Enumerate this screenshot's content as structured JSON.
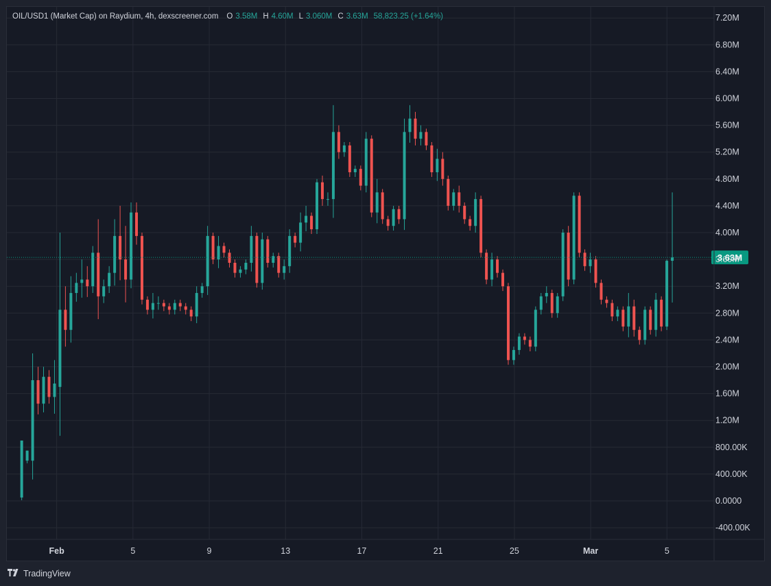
{
  "legend": {
    "symbol": "OIL/USD1 (Market Cap) on Raydium, 4h, dexscreener.com",
    "open_label": "O",
    "open": "3.58M",
    "high_label": "H",
    "high": "4.60M",
    "low_label": "L",
    "low": "3.060M",
    "close_label": "C",
    "close": "3.63M",
    "change": "58,823.25 (+1.64%)"
  },
  "footer": {
    "brand": "TradingView"
  },
  "colors": {
    "up": "#26a69a",
    "down": "#ef5350",
    "text": "#d1d4dc",
    "grid": "#262a35",
    "bg": "#161a25",
    "price_tag": "#089981"
  },
  "chart_data": {
    "type": "candlestick",
    "ylim": [
      -500000,
      7400000
    ],
    "y_ticks": [
      7200000,
      6800000,
      6400000,
      6000000,
      5600000,
      5200000,
      4800000,
      4400000,
      4000000,
      3600000,
      3200000,
      2800000,
      2400000,
      2000000,
      1600000,
      1200000,
      800000,
      400000,
      0,
      -400000
    ],
    "y_tick_labels": [
      "7.20M",
      "6.80M",
      "6.40M",
      "6.00M",
      "5.60M",
      "5.20M",
      "4.80M",
      "4.40M",
      "4.00M",
      "3.60M",
      "3.20M",
      "2.80M",
      "2.40M",
      "2.00M",
      "1.60M",
      "1.20M",
      "800.00K",
      "400.00K",
      "0.0000",
      "-400.00K"
    ],
    "x_ticks": [
      {
        "x": "2025-02-01",
        "label": "Feb",
        "bold": true
      },
      {
        "x": "2025-02-05",
        "label": "5"
      },
      {
        "x": "2025-02-09",
        "label": "9"
      },
      {
        "x": "2025-02-13",
        "label": "13"
      },
      {
        "x": "2025-02-17",
        "label": "17"
      },
      {
        "x": "2025-02-21",
        "label": "21"
      },
      {
        "x": "2025-02-25",
        "label": "25"
      },
      {
        "x": "2025-03-01",
        "label": "Mar",
        "bold": true
      },
      {
        "x": "2025-03-05",
        "label": "5"
      }
    ],
    "xlim": [
      "2025-01-30T00:00",
      "2025-03-06T12:00"
    ],
    "current_price": 3630000,
    "current_price_label": "3.63M",
    "grid": true,
    "ohlc_path": [
      [
        0.05,
        0.9,
        0.5
      ],
      [
        0.6,
        0.75,
        0.3
      ],
      [
        0.6,
        1.8,
        2.2
      ],
      [
        1.8,
        1.45,
        2.0
      ],
      [
        1.45,
        1.85,
        2.0
      ],
      [
        1.85,
        1.55,
        1.95
      ],
      [
        1.55,
        1.75,
        2.1
      ],
      [
        1.7,
        2.85,
        4.0
      ],
      [
        2.85,
        2.55,
        3.2
      ],
      [
        2.55,
        3.1,
        3.35
      ],
      [
        3.1,
        3.25,
        3.4
      ],
      [
        3.25,
        3.3,
        3.6
      ],
      [
        3.3,
        3.2,
        3.5
      ],
      [
        3.2,
        3.7,
        3.8
      ],
      [
        3.7,
        3.05,
        4.2
      ],
      [
        3.05,
        3.2,
        3.3
      ],
      [
        3.2,
        3.4,
        3.5
      ],
      [
        3.4,
        3.95,
        4.2
      ],
      [
        3.95,
        3.6,
        4.4
      ],
      [
        3.6,
        3.3,
        4.1
      ],
      [
        3.3,
        4.3,
        4.45
      ],
      [
        4.3,
        3.95,
        4.45
      ],
      [
        3.95,
        3.0,
        4.0
      ],
      [
        3.0,
        2.85,
        3.05
      ],
      [
        2.85,
        2.95,
        3.1
      ],
      [
        2.95,
        2.95,
        3.05
      ],
      [
        2.95,
        2.9,
        3.0
      ],
      [
        2.9,
        2.85,
        2.95
      ],
      [
        2.85,
        2.95,
        3.0
      ],
      [
        2.95,
        2.9,
        3.0
      ],
      [
        2.9,
        2.85,
        2.95
      ],
      [
        2.85,
        2.75,
        2.9
      ],
      [
        2.75,
        3.1,
        3.2
      ],
      [
        3.1,
        3.2,
        3.25
      ],
      [
        3.2,
        3.95,
        4.1
      ],
      [
        3.95,
        3.6,
        4.0
      ],
      [
        3.6,
        3.8,
        3.95
      ],
      [
        3.8,
        3.7,
        3.85
      ],
      [
        3.7,
        3.55,
        3.75
      ],
      [
        3.55,
        3.4,
        3.6
      ],
      [
        3.4,
        3.45,
        3.5
      ],
      [
        3.45,
        3.55,
        3.6
      ],
      [
        3.55,
        3.95,
        4.1
      ],
      [
        3.95,
        3.25,
        4.0
      ],
      [
        3.25,
        3.9,
        4.0
      ],
      [
        3.9,
        3.55,
        3.95
      ],
      [
        3.55,
        3.65,
        3.7
      ],
      [
        3.65,
        3.4,
        3.7
      ],
      [
        3.4,
        3.5,
        3.6
      ],
      [
        3.5,
        3.95,
        4.05
      ],
      [
        3.95,
        3.85,
        4.0
      ],
      [
        3.85,
        4.15,
        4.3
      ],
      [
        4.15,
        4.25,
        4.4
      ],
      [
        4.25,
        4.05,
        4.3
      ],
      [
        4.05,
        4.75,
        4.8
      ],
      [
        4.75,
        4.5,
        4.85
      ],
      [
        4.5,
        4.5,
        4.6
      ],
      [
        4.5,
        5.5,
        5.9
      ],
      [
        5.5,
        5.2,
        5.6
      ],
      [
        5.2,
        5.3,
        5.35
      ],
      [
        5.3,
        4.9,
        5.35
      ],
      [
        4.9,
        4.95,
        5.0
      ],
      [
        4.95,
        4.7,
        5.0
      ],
      [
        4.7,
        5.4,
        5.5
      ],
      [
        5.4,
        4.3,
        5.45
      ],
      [
        4.3,
        4.6,
        4.8
      ],
      [
        4.6,
        4.2,
        4.65
      ],
      [
        4.2,
        4.1,
        4.25
      ],
      [
        4.1,
        4.35,
        4.4
      ],
      [
        4.35,
        4.2,
        4.4
      ],
      [
        4.2,
        5.5,
        5.7
      ],
      [
        5.5,
        5.7,
        5.9
      ],
      [
        5.7,
        5.4,
        5.8
      ],
      [
        5.4,
        5.5,
        5.6
      ],
      [
        5.5,
        5.3,
        5.55
      ],
      [
        5.3,
        4.9,
        5.35
      ],
      [
        4.9,
        5.1,
        5.25
      ],
      [
        5.1,
        4.8,
        5.2
      ],
      [
        4.8,
        4.4,
        4.85
      ],
      [
        4.4,
        4.6,
        4.65
      ],
      [
        4.6,
        4.4,
        4.7
      ],
      [
        4.4,
        4.2,
        4.45
      ],
      [
        4.2,
        4.1,
        4.25
      ],
      [
        4.1,
        4.5,
        4.6
      ],
      [
        4.5,
        3.7,
        4.55
      ],
      [
        3.7,
        3.3,
        3.75
      ],
      [
        3.3,
        3.6,
        3.7
      ],
      [
        3.6,
        3.4,
        3.65
      ],
      [
        3.4,
        3.2,
        3.45
      ],
      [
        3.2,
        2.1,
        3.25
      ],
      [
        2.1,
        2.25,
        2.3
      ],
      [
        2.25,
        2.45,
        2.5
      ],
      [
        2.45,
        2.4,
        2.5
      ],
      [
        2.4,
        2.3,
        2.45
      ],
      [
        2.3,
        2.85,
        2.9
      ],
      [
        2.85,
        3.05,
        3.1
      ],
      [
        3.05,
        3.1,
        3.2
      ],
      [
        3.1,
        2.8,
        3.15
      ],
      [
        2.8,
        3.05,
        3.1
      ],
      [
        3.05,
        4.0,
        4.05
      ],
      [
        4.0,
        3.3,
        4.1
      ],
      [
        3.3,
        4.55,
        4.6
      ],
      [
        4.55,
        3.7,
        4.6
      ],
      [
        3.7,
        3.5,
        3.75
      ],
      [
        3.5,
        3.6,
        3.7
      ],
      [
        3.6,
        3.25,
        3.65
      ],
      [
        3.25,
        3.0,
        3.3
      ],
      [
        3.0,
        2.95,
        3.05
      ],
      [
        2.95,
        2.75,
        3.0
      ],
      [
        2.75,
        2.85,
        2.9
      ],
      [
        2.85,
        2.6,
        2.9
      ],
      [
        2.6,
        2.9,
        3.1
      ],
      [
        2.9,
        2.55,
        3.0
      ],
      [
        2.55,
        2.4,
        2.6
      ],
      [
        2.4,
        2.85,
        2.9
      ],
      [
        2.85,
        2.55,
        2.9
      ],
      [
        2.55,
        3.0,
        3.1
      ],
      [
        3.0,
        2.6,
        3.05
      ],
      [
        2.6,
        3.58,
        3.6
      ],
      [
        3.58,
        3.63,
        4.6
      ]
    ]
  }
}
